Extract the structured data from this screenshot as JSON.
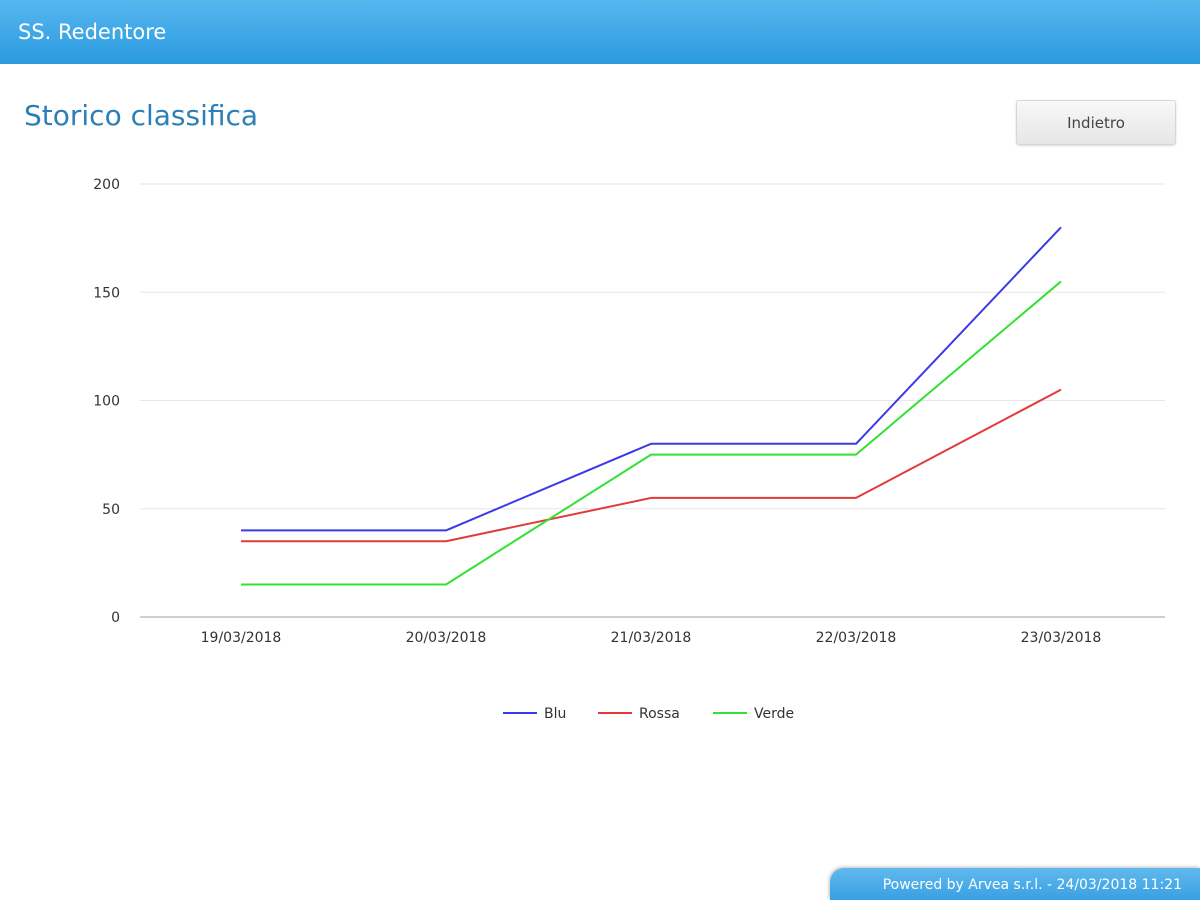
{
  "header": {
    "title": "SS. Redentore"
  },
  "page": {
    "title": "Storico classifica",
    "back_label": "Indietro"
  },
  "footer": {
    "text": "Powered by Arvea s.r.l. - 24/03/2018 11:21"
  },
  "colors": {
    "header": "#2a9ae0",
    "title": "#2d7fb8",
    "blu": "#3b3be6",
    "rossa": "#e23b3b",
    "verde": "#33e033",
    "grid": "#e6e6e6"
  },
  "chart_data": {
    "type": "line",
    "title": "",
    "xlabel": "",
    "ylabel": "",
    "categories": [
      "19/03/2018",
      "20/03/2018",
      "21/03/2018",
      "22/03/2018",
      "23/03/2018"
    ],
    "ylim": [
      0,
      200
    ],
    "yticks": [
      "0",
      "50",
      "100",
      "150",
      "200"
    ],
    "grid": true,
    "legend": "bottom-center",
    "series": [
      {
        "name": "Blu",
        "color": "#3b3be6",
        "values": [
          40,
          40,
          80,
          80,
          180
        ]
      },
      {
        "name": "Rossa",
        "color": "#e23b3b",
        "values": [
          35,
          35,
          55,
          55,
          105
        ]
      },
      {
        "name": "Verde",
        "color": "#33e033",
        "values": [
          15,
          15,
          75,
          75,
          155
        ]
      }
    ]
  }
}
